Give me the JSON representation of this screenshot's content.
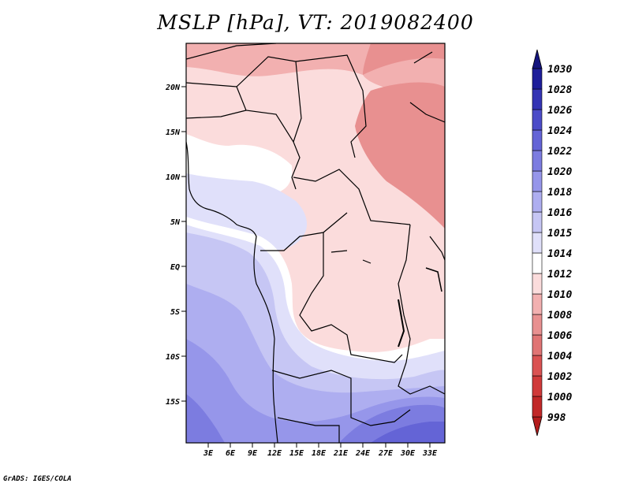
{
  "title": "MSLP [hPa], VT: 2019082400",
  "credit": "GrADS: IGES/COLA",
  "map": {
    "lat_ticks": [
      "20N",
      "15N",
      "10N",
      "5N",
      "EQ",
      "5S",
      "10S",
      "15S"
    ],
    "lon_ticks": [
      "3E",
      "6E",
      "9E",
      "12E",
      "15E",
      "18E",
      "21E",
      "24E",
      "27E",
      "30E",
      "33E"
    ]
  },
  "colorbar": {
    "levels": [
      "998",
      "1000",
      "1002",
      "1004",
      "1006",
      "1008",
      "1010",
      "1012",
      "1014",
      "1015",
      "1016",
      "1018",
      "1020",
      "1022",
      "1024",
      "1026",
      "1028",
      "1030"
    ],
    "colors": [
      "#b31c1c",
      "#c12828",
      "#d03a3a",
      "#da5252",
      "#e07474",
      "#e89090",
      "#f2b0b0",
      "#fbdcdc",
      "#ffffff",
      "#e0e0fa",
      "#c6c6f4",
      "#aeaef0",
      "#9696ea",
      "#7c7ce0",
      "#6464d6",
      "#4c4cc8",
      "#3434b4",
      "#1e1e9a",
      "#14147e"
    ]
  }
}
